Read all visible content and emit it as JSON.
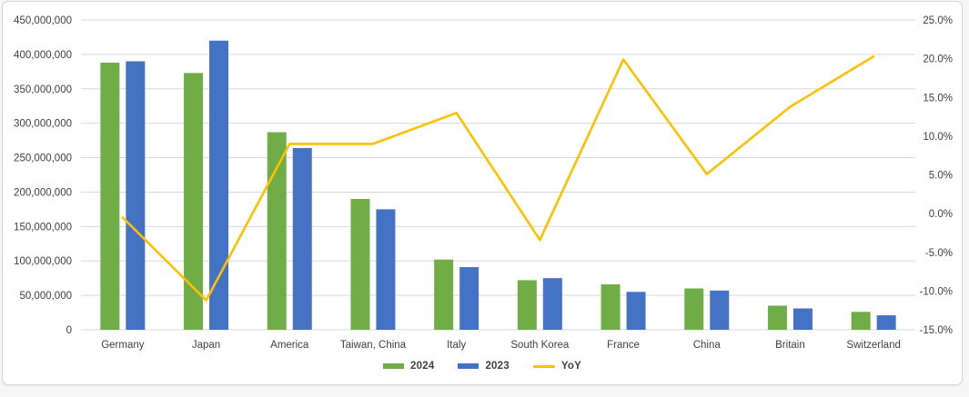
{
  "chart_data": {
    "type": "bar+line",
    "title": "",
    "categories": [
      "Germany",
      "Japan",
      "America",
      "Taiwan, China",
      "Italy",
      "South Korea",
      "France",
      "China",
      "Britain",
      "Switzerland"
    ],
    "series": [
      {
        "name": "2024",
        "type": "bar",
        "axis": "left",
        "color": "#70AD47",
        "values": [
          388000000,
          373000000,
          287000000,
          190000000,
          102000000,
          72000000,
          66000000,
          60000000,
          35000000,
          26000000
        ]
      },
      {
        "name": "2023",
        "type": "bar",
        "axis": "left",
        "color": "#4472C4",
        "values": [
          390000000,
          420000000,
          264000000,
          175000000,
          91000000,
          75000000,
          55000000,
          57000000,
          31000000,
          21000000
        ]
      },
      {
        "name": "YoY",
        "type": "line",
        "axis": "right",
        "color": "#FFC000",
        "values": [
          -0.5,
          -11.2,
          9.0,
          9.0,
          13.0,
          -3.4,
          19.9,
          5.1,
          13.8,
          20.3
        ]
      }
    ],
    "left_axis": {
      "min": 0,
      "max": 450000000,
      "step": 50000000,
      "tick_labels": [
        "0",
        "50,000,000",
        "100,000,000",
        "150,000,000",
        "200,000,000",
        "250,000,000",
        "300,000,000",
        "350,000,000",
        "400,000,000",
        "450,000,000"
      ]
    },
    "right_axis": {
      "min": -15,
      "max": 25,
      "step": 5,
      "tick_labels": [
        "-15.0%",
        "-10.0%",
        "-5.0%",
        "0.0%",
        "5.0%",
        "10.0%",
        "15.0%",
        "20.0%",
        "25.0%"
      ]
    },
    "legend": {
      "position": "bottom",
      "items": [
        "2024",
        "2023",
        "YoY"
      ]
    },
    "grid": true,
    "colors": {
      "gridline": "#D9D9D9",
      "axis_text": "#404040",
      "card_border": "#d6d6d6",
      "background": "#ffffff"
    }
  }
}
